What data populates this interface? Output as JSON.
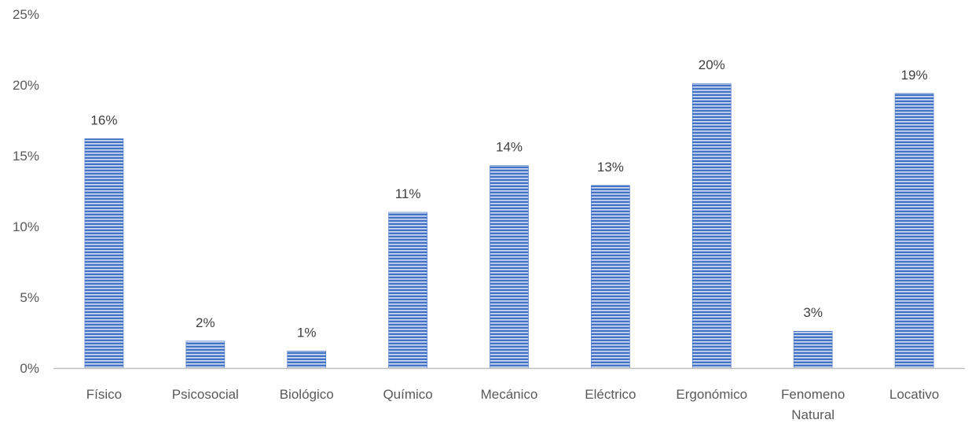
{
  "chart_data": {
    "type": "bar",
    "categories": [
      "Físico",
      "Psicosocial",
      "Biológico",
      "Químico",
      "Mecánico",
      "Eléctrico",
      "Ergonómico",
      "Fenomeno Natural",
      "Locativo"
    ],
    "values": [
      16.2,
      1.9,
      1.2,
      11.0,
      14.3,
      12.9,
      20.1,
      2.6,
      19.4
    ],
    "data_labels": [
      "16%",
      "2%",
      "1%",
      "11%",
      "14%",
      "13%",
      "20%",
      "3%",
      "19%"
    ],
    "y_ticks": [
      0,
      5,
      10,
      15,
      20,
      25
    ],
    "y_tick_labels": [
      "0%",
      "5%",
      "10%",
      "15%",
      "20%",
      "25%"
    ],
    "ylim": [
      0,
      25
    ],
    "title": "",
    "xlabel": "",
    "ylabel": "",
    "grid": false,
    "legend": "none",
    "bar_color": "#4472C4",
    "bar_stripe_color": "#D6E0F3",
    "axis_color": "#BFBFBF"
  }
}
